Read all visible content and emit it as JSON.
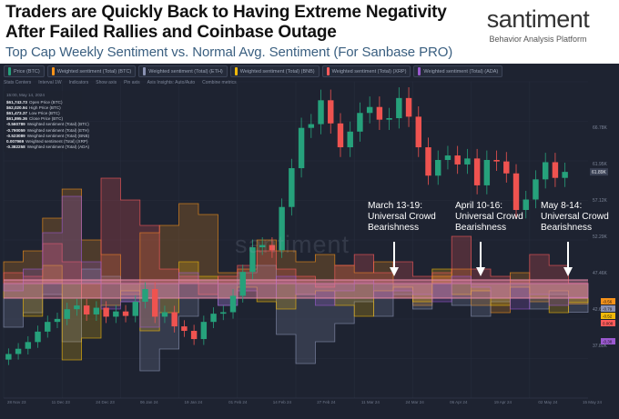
{
  "header": {
    "title": "Traders are Quickly Back to Having Extreme Negativity After Failed Rallies and Coinbase Outage",
    "subtitle": "Top Cap Weekly Sentiment vs. Normal Avg. Sentiment (For Sanbase PRO)"
  },
  "brand": {
    "name": "santiment",
    "tagline": "Behavior Analysis Platform"
  },
  "legend": [
    {
      "label": "Price (BTC)",
      "color": "#26a17b"
    },
    {
      "label": "Weighted sentiment (Total) (BTC)",
      "color": "#f7931a"
    },
    {
      "label": "Weighted sentiment (Total) (ETH)",
      "color": "#8a92b2"
    },
    {
      "label": "Weighted sentiment (Total) (BNB)",
      "color": "#f0b90b"
    },
    {
      "label": "Weighted sentiment (Total) (XRP)",
      "color": "#ff5b5b"
    },
    {
      "label": "Weighted sentiment (Total) (ADA)",
      "color": "#9b59d0"
    }
  ],
  "toolbar": [
    "Stats Centers",
    "Interval 1W",
    "Indicators",
    "Show axis",
    "Pin axis",
    "Axis Insights: Auto/Auto",
    "Combine metrics"
  ],
  "info_box": {
    "date": "15:00, May 14, 2024",
    "rows": [
      {
        "value": "$61,743.73",
        "label": "Open Price (BTC)"
      },
      {
        "value": "$62,020.94",
        "label": "High Price (BTC)"
      },
      {
        "value": "$61,473.37",
        "label": "Low Price (BTC)"
      },
      {
        "value": "$61,895.36",
        "label": "Close Price (BTC)"
      },
      {
        "value": "-0.560789",
        "label": "Weighted sentiment (Total) (BTC)"
      },
      {
        "value": "-0.790059",
        "label": "Weighted sentiment (Total) (ETH)"
      },
      {
        "value": "-0.523089",
        "label": "Weighted sentiment (Total) (BNB)"
      },
      {
        "value": "0.007969",
        "label": "Weighted sentiment (Total) (XRP)"
      },
      {
        "value": "-0.382258",
        "label": "Weighted sentiment (Total) (ADA)"
      }
    ]
  },
  "watermark": "santiment",
  "annotations": [
    {
      "lines": [
        "March 13-19:",
        "Universal Crowd",
        "Bearishness"
      ]
    },
    {
      "lines": [
        "April 10-16:",
        "Universal Crowd",
        "Bearishness"
      ]
    },
    {
      "lines": [
        "May 8-14:",
        "Universal Crowd",
        "Bearishness"
      ]
    }
  ],
  "colors": {
    "background": "#1e2331",
    "candle_up": "#26a17b",
    "candle_down": "#ef5350",
    "baseline_band": "#e88aa8",
    "annotation": "#ffffff"
  },
  "chart_data": {
    "type": "line",
    "title": "Top Cap Weekly Sentiment vs. Normal Avg. Sentiment (For Sanbase PRO)",
    "x_tick_labels": [
      "28 Nov 23",
      "11 Dec 23",
      "24 Dec 23",
      "06 Jan 24",
      "19 Jan 24",
      "01 Feb 24",
      "14 Feb 24",
      "27 Feb 24",
      "11 Mar 24",
      "24 Mar 24",
      "06 Apr 24",
      "19 Apr 24",
      "02 May 24",
      "15 May 24"
    ],
    "price_series": {
      "name": "Price (BTC)",
      "values": [
        37500,
        38200,
        39100,
        40500,
        41800,
        42200,
        43500,
        44000,
        42800,
        43700,
        42500,
        43200,
        42600,
        44500,
        46200,
        42500,
        43100,
        41200,
        40600,
        39500,
        41800,
        42900,
        43100,
        45300,
        48500,
        51800,
        52100,
        51400,
        57200,
        62400,
        67800,
        68300,
        71500,
        68400,
        65200,
        67300,
        69800,
        70600,
        68900,
        69100,
        71800,
        69300,
        65200,
        61400,
        63500,
        64100,
        62900,
        63700,
        60100,
        63500,
        63300,
        61700,
        56800,
        58200,
        60900,
        63200,
        61100,
        61900
      ]
    },
    "sentiment_series": [
      {
        "name": "Weighted sentiment (Total) (BTC)",
        "color": "#f7931a",
        "values": [
          0.6,
          0.9,
          1.8,
          2.6,
          1.2,
          0.8,
          -0.3,
          1.4,
          1.6,
          2.2,
          1.9,
          0.3,
          0.4,
          1.2,
          0.9,
          0.6,
          0.8,
          0.5,
          0.3,
          0.6,
          -0.4,
          -0.6,
          0.2,
          0.4,
          -0.6,
          -0.8,
          0.3,
          -0.5,
          -0.2,
          -0.56
        ]
      },
      {
        "name": "Weighted sentiment (Total) (ETH)",
        "color": "#8a92b2",
        "values": [
          -1.2,
          -0.8,
          -0.3,
          -1.6,
          0.4,
          0.2,
          -0.5,
          -2.4,
          -1.8,
          -0.9,
          -0.4,
          -0.6,
          0.3,
          0.5,
          -1.4,
          -2.2,
          -1.6,
          -1.1,
          -0.5,
          -0.9,
          -0.3,
          -0.7,
          -0.4,
          -0.6,
          -0.9,
          -0.5,
          -0.4,
          -0.7,
          -0.3,
          -0.79
        ]
      },
      {
        "name": "Weighted sentiment (Total) (BNB)",
        "color": "#f0b90b",
        "values": [
          -0.4,
          -0.9,
          0.5,
          -2.1,
          -1.5,
          -0.6,
          -0.2,
          -1.3,
          -0.8,
          0.6,
          0.2,
          -0.4,
          -0.1,
          -0.5,
          -0.7,
          -0.3,
          -0.2,
          -0.6,
          -0.9,
          -0.2,
          -0.1,
          -0.5,
          0.4,
          -0.3,
          -0.2,
          -0.6,
          -0.1,
          -0.4,
          -0.8,
          -0.52
        ]
      },
      {
        "name": "Weighted sentiment (Total) (XRP)",
        "color": "#ff5b5b",
        "values": [
          0.3,
          0.2,
          1.1,
          0.6,
          -0.4,
          2.9,
          2.3,
          1.6,
          0.4,
          0.2,
          -0.3,
          0.2,
          0.5,
          0.9,
          0.4,
          0.2,
          -0.1,
          0.5,
          0.8,
          0.3,
          0.6,
          0.2,
          0.3,
          1.3,
          0.4,
          0.2,
          0.1,
          0.8,
          0.5,
          0.008
        ]
      },
      {
        "name": "Weighted sentiment (Total) (ADA)",
        "color": "#9b59d0",
        "values": [
          -0.2,
          0.4,
          1.4,
          2.4,
          0.6,
          -0.7,
          -0.5,
          -1.2,
          -0.4,
          0.3,
          0.1,
          -0.6,
          -0.2,
          -0.4,
          0.2,
          -0.3,
          -0.6,
          -0.2,
          0.1,
          -0.4,
          -0.2,
          -0.3,
          -0.5,
          0.2,
          -0.1,
          -0.4,
          -0.7,
          -0.3,
          -0.6,
          -0.38
        ]
      }
    ],
    "right_axis_labels": [
      "66.78K",
      "61.95K",
      "57.12K",
      "52.29K",
      "47.46K",
      "42.63K",
      "37.80K"
    ],
    "current_price_label": "61.89K",
    "series_value_labels": [
      "-0.56",
      "-0.79",
      "-0.52",
      "0.008",
      "-0.38"
    ]
  }
}
